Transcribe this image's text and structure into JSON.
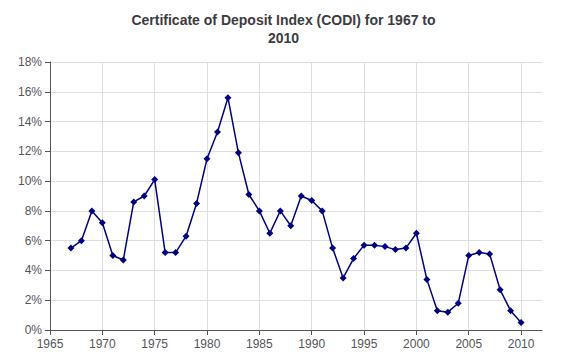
{
  "chart_data": {
    "type": "line",
    "title": "Certificate of Deposit Index (CODI) for 1967 to\n2010",
    "x": [
      1967,
      1968,
      1969,
      1970,
      1971,
      1972,
      1973,
      1974,
      1975,
      1976,
      1977,
      1978,
      1979,
      1980,
      1981,
      1982,
      1983,
      1984,
      1985,
      1986,
      1987,
      1988,
      1989,
      1990,
      1991,
      1992,
      1993,
      1994,
      1995,
      1996,
      1997,
      1998,
      1999,
      2000,
      2001,
      2002,
      2003,
      2004,
      2005,
      2006,
      2007,
      2008,
      2009,
      2010
    ],
    "values": [
      0.055,
      0.06,
      0.08,
      0.072,
      0.05,
      0.047,
      0.086,
      0.09,
      0.101,
      0.052,
      0.052,
      0.063,
      0.085,
      0.115,
      0.133,
      0.156,
      0.119,
      0.091,
      0.08,
      0.065,
      0.08,
      0.07,
      0.09,
      0.087,
      0.08,
      0.055,
      0.035,
      0.048,
      0.057,
      0.057,
      0.056,
      0.054,
      0.055,
      0.065,
      0.034,
      0.013,
      0.012,
      0.018,
      0.05,
      0.052,
      0.051,
      0.027,
      0.013,
      0.005
    ],
    "color": "#000080",
    "marker": "diamond",
    "xlim": [
      1965,
      2012
    ],
    "xticks": [
      1965,
      1970,
      1975,
      1980,
      1985,
      1990,
      1995,
      2000,
      2005,
      2010
    ],
    "ylim": [
      0,
      0.18
    ],
    "yticks": [
      {
        "value": 0,
        "label": "0%"
      },
      {
        "value": 0.02,
        "label": "2%"
      },
      {
        "value": 0.04,
        "label": "4%"
      },
      {
        "value": 0.06,
        "label": "6%"
      },
      {
        "value": 0.08,
        "label": "8%"
      },
      {
        "value": 0.1,
        "label": "10%"
      },
      {
        "value": 0.12,
        "label": "12%"
      },
      {
        "value": 0.14,
        "label": "14%"
      },
      {
        "value": 0.16,
        "label": "16%"
      },
      {
        "value": 0.18,
        "label": "18%"
      }
    ],
    "grid": true
  }
}
